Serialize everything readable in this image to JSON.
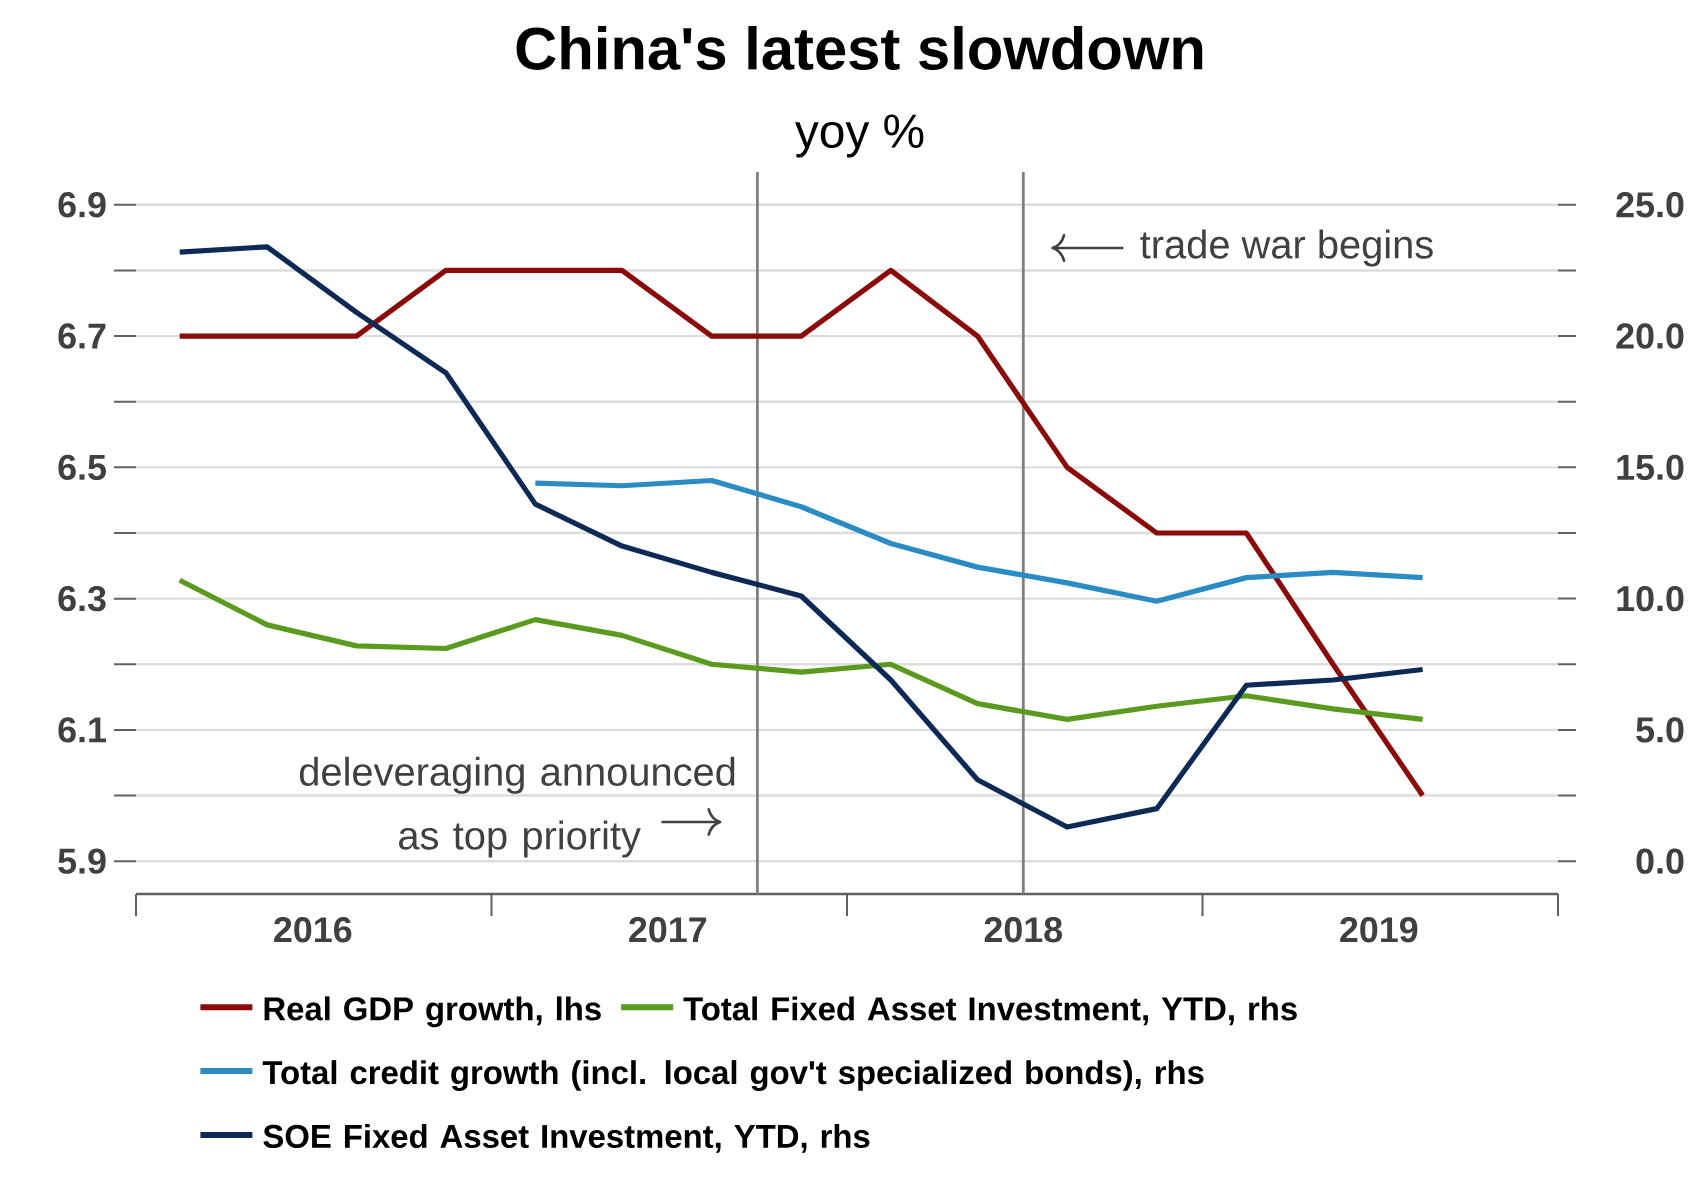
{
  "chart_data": {
    "type": "line",
    "title": "China's latest slowdown",
    "subtitle": "yoy %",
    "x": [
      "2016-02-15",
      "2016-05-15",
      "2016-08-15",
      "2016-11-15",
      "2017-02-15",
      "2017-05-15",
      "2017-08-15",
      "2017-11-15",
      "2018-02-15",
      "2018-05-15",
      "2018-08-15",
      "2018-11-15",
      "2019-02-15",
      "2019-05-15",
      "2019-08-15"
    ],
    "series": [
      {
        "name": "Real GDP growth, lhs",
        "color": "#8b0a0a",
        "values": [
          6.7,
          6.7,
          6.7,
          6.8,
          6.8,
          6.8,
          6.7,
          6.7,
          6.8,
          6.7,
          6.5,
          6.4,
          6.4,
          6.2,
          6.0
        ]
      },
      {
        "name": "Total Fixed Asset Investment, YTD, rhs",
        "color": "#5a9a1e",
        "axis": "y2",
        "values": [
          10.7,
          9.0,
          8.2,
          8.1,
          9.2,
          8.6,
          7.5,
          7.2,
          7.5,
          6.0,
          5.4,
          5.9,
          6.3,
          5.8,
          5.4
        ]
      },
      {
        "name": "Total credit growth (incl. local gov't specialized bonds), rhs",
        "color": "#2b8cc4",
        "axis": "y2",
        "values": [
          null,
          null,
          null,
          null,
          14.4,
          14.3,
          14.5,
          13.5,
          12.1,
          11.2,
          10.6,
          9.9,
          10.8,
          11.0,
          10.8
        ]
      },
      {
        "name": "SOE Fixed Asset Investment, YTD, rhs",
        "color": "#0c2a55",
        "axis": "y2",
        "values": [
          23.2,
          23.4,
          20.9,
          18.6,
          13.6,
          12.0,
          11.0,
          10.1,
          6.9,
          3.1,
          1.3,
          2.0,
          6.7,
          6.9,
          7.3
        ]
      }
    ],
    "xlim": [
      "2016-01-01",
      "2020-01-01"
    ],
    "xticks": [
      {
        "value": "2016-01-01",
        "label": null
      },
      {
        "value": "2016-07-01",
        "label": "2016"
      },
      {
        "value": "2017-01-01",
        "label": null
      },
      {
        "value": "2017-07-01",
        "label": "2017"
      },
      {
        "value": "2018-01-01",
        "label": null
      },
      {
        "value": "2018-07-01",
        "label": "2018"
      },
      {
        "value": "2019-01-01",
        "label": null
      },
      {
        "value": "2019-07-01",
        "label": "2019"
      },
      {
        "value": "2020-01-01",
        "label": null
      }
    ],
    "ylim": [
      5.85,
      6.95
    ],
    "yticks": [
      5.9,
      {
        "value": 6.0,
        "label": null
      },
      6.1,
      {
        "value": 6.2,
        "label": null
      },
      6.3,
      {
        "value": 6.4,
        "label": null
      },
      6.5,
      {
        "value": 6.6,
        "label": null
      },
      6.7,
      {
        "value": 6.8,
        "label": null
      },
      6.9
    ],
    "y2lim": [
      -1.25,
      26.25
    ],
    "y2ticks": [
      {
        "value": 0,
        "label": "0.0"
      },
      {
        "value": 2.5,
        "label": null
      },
      {
        "value": 5,
        "label": "5.0"
      },
      {
        "value": 7.5,
        "label": null
      },
      {
        "value": 10,
        "label": "10.0"
      },
      {
        "value": 12.5,
        "label": null
      },
      {
        "value": 15,
        "label": "15.0"
      },
      {
        "value": 17.5,
        "label": null
      },
      {
        "value": 20,
        "label": "20.0"
      },
      {
        "value": 22.5,
        "label": null
      },
      {
        "value": 25,
        "label": "25.0"
      }
    ],
    "ref_lines": [
      {
        "axis": "x",
        "value": "2017-10",
        "label": "deleveraging announced as top priority",
        "color": "#808080"
      },
      {
        "axis": "x",
        "value": "2018-07",
        "label": "trade war begins",
        "color": "#808080"
      }
    ],
    "grid": "y",
    "legend": "bottom",
    "line_style": "solid"
  }
}
